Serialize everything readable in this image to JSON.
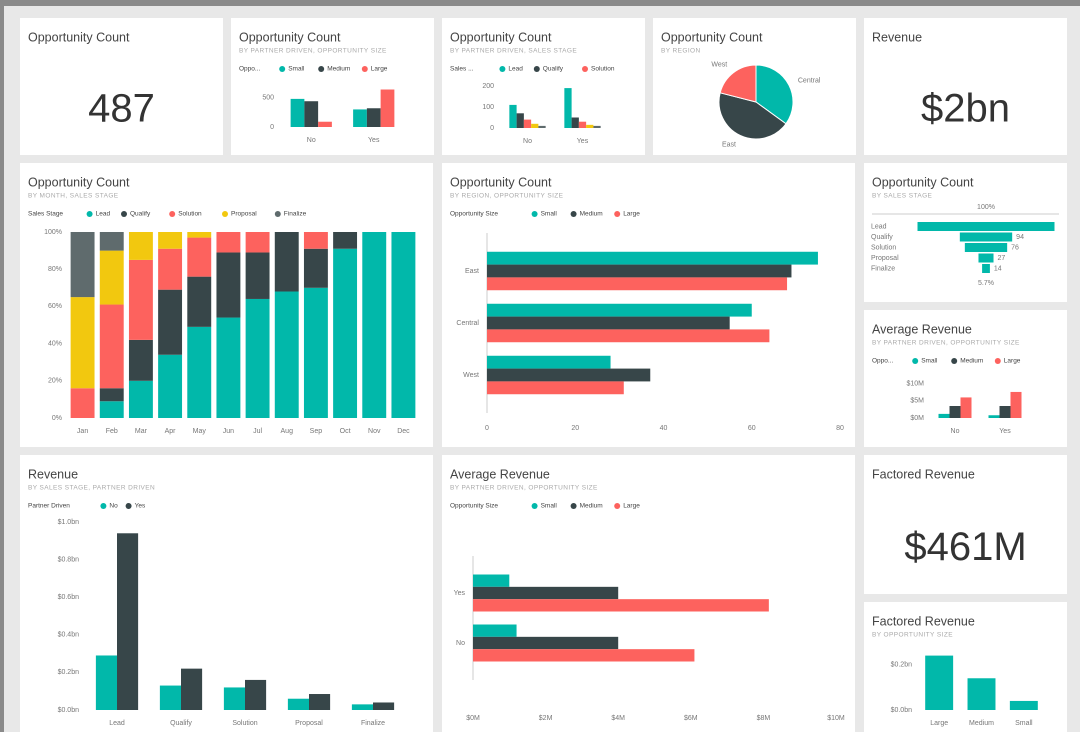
{
  "chart_data": [
    {
      "type": "card",
      "title": "Opportunity Count",
      "value": 487
    },
    {
      "type": "bar",
      "title": "Opportunity Count",
      "subtitle": "BY PARTNER DRIVEN, OPPORTUNITY SIZE",
      "legend_title": "Oppo...",
      "categories": [
        "No",
        "Yes"
      ],
      "series": [
        {
          "name": "Small",
          "color": "#01b8aa",
          "values": [
            480,
            300
          ]
        },
        {
          "name": "Medium",
          "color": "#374649",
          "values": [
            440,
            320
          ]
        },
        {
          "name": "Large",
          "color": "#fd625e",
          "values": [
            90,
            640
          ]
        }
      ],
      "ylim": [
        0,
        700
      ],
      "yticks": [
        0,
        500
      ]
    },
    {
      "type": "bar",
      "title": "Opportunity Count",
      "subtitle": "BY PARTNER DRIVEN, SALES STAGE",
      "legend_title": "Sales ...",
      "categories": [
        "No",
        "Yes"
      ],
      "series": [
        {
          "name": "Lead",
          "color": "#01b8aa",
          "values": [
            110,
            190
          ]
        },
        {
          "name": "Qualify",
          "color": "#374649",
          "values": [
            70,
            50
          ]
        },
        {
          "name": "Solution",
          "color": "#fd625e",
          "values": [
            40,
            30
          ]
        },
        {
          "name": "Proposal",
          "color": "#f2c80f",
          "values": [
            20,
            15
          ]
        },
        {
          "name": "Finalize",
          "color": "#5f6b6d",
          "values": [
            10,
            10
          ]
        }
      ],
      "ylim": [
        0,
        200
      ],
      "yticks": [
        0,
        100,
        200
      ]
    },
    {
      "type": "pie",
      "title": "Opportunity Count",
      "subtitle": "BY REGION",
      "categories": [
        "Central",
        "East",
        "West"
      ],
      "values": [
        35,
        44,
        21
      ],
      "colors": [
        "#01b8aa",
        "#374649",
        "#fd625e"
      ]
    },
    {
      "type": "card",
      "title": "Revenue",
      "value": 2000000000,
      "value_label": "$2bn"
    },
    {
      "type": "bar",
      "stacked": true,
      "title": "Opportunity Count",
      "subtitle": "BY MONTH, SALES STAGE",
      "legend_title": "Sales Stage",
      "categories": [
        "Jan",
        "Feb",
        "Mar",
        "Apr",
        "May",
        "Jun",
        "Jul",
        "Aug",
        "Sep",
        "Oct",
        "Nov",
        "Dec"
      ],
      "series": [
        {
          "name": "Lead",
          "color": "#01b8aa",
          "values": [
            0,
            9,
            20,
            34,
            49,
            54,
            64,
            68,
            70,
            91,
            100,
            100
          ]
        },
        {
          "name": "Qualify",
          "color": "#374649",
          "values": [
            0,
            7,
            22,
            35,
            27,
            35,
            25,
            32,
            21,
            9,
            0,
            0
          ]
        },
        {
          "name": "Solution",
          "color": "#fd625e",
          "values": [
            16,
            45,
            43,
            22,
            21,
            11,
            11,
            0,
            9,
            0,
            0,
            0
          ]
        },
        {
          "name": "Proposal",
          "color": "#f2c80f",
          "values": [
            49,
            29,
            15,
            9,
            3,
            0,
            0,
            0,
            0,
            0,
            0,
            0
          ]
        },
        {
          "name": "Finalize",
          "color": "#5f6b6d",
          "values": [
            35,
            10,
            0,
            0,
            0,
            0,
            0,
            0,
            0,
            0,
            0,
            0
          ]
        }
      ],
      "ylim": [
        0,
        100
      ],
      "yticks": [
        {
          "value": 0,
          "label": "0%"
        },
        {
          "value": 20,
          "label": "20%"
        },
        {
          "value": 40,
          "label": "40%"
        },
        {
          "value": 60,
          "label": "60%"
        },
        {
          "value": 80,
          "label": "80%"
        },
        {
          "value": 100,
          "label": "100%"
        }
      ]
    },
    {
      "type": "hbar",
      "title": "Opportunity Count",
      "subtitle": "BY REGION, OPPORTUNITY SIZE",
      "legend_title": "Opportunity Size",
      "categories": [
        "East",
        "Central",
        "West"
      ],
      "series": [
        {
          "name": "Small",
          "color": "#01b8aa",
          "values": [
            75,
            60,
            28
          ]
        },
        {
          "name": "Medium",
          "color": "#374649",
          "values": [
            69,
            55,
            37
          ]
        },
        {
          "name": "Large",
          "color": "#fd625e",
          "values": [
            68,
            64,
            31
          ]
        }
      ],
      "xlim": [
        0,
        80
      ],
      "xticks": [
        0,
        20,
        40,
        60,
        80
      ]
    },
    {
      "type": "funnel",
      "title": "Opportunity Count",
      "subtitle": "BY SALES STAGE",
      "categories": [
        "Lead",
        "Qualify",
        "Solution",
        "Proposal",
        "Finalize"
      ],
      "values": [
        246,
        94,
        76,
        27,
        14
      ],
      "color": "#01b8aa",
      "top_label": "100%",
      "bottom_label": "5.7%"
    },
    {
      "type": "bar",
      "title": "Average Revenue",
      "subtitle": "BY PARTNER DRIVEN, OPPORTUNITY SIZE",
      "legend_title": "Oppo...",
      "categories": [
        "No",
        "Yes"
      ],
      "series": [
        {
          "name": "Small",
          "color": "#01b8aa",
          "values": [
            1.2,
            0.8
          ]
        },
        {
          "name": "Medium",
          "color": "#374649",
          "values": [
            3.5,
            3.5
          ]
        },
        {
          "name": "Large",
          "color": "#fd625e",
          "values": [
            6,
            7.6
          ]
        }
      ],
      "ylim": [
        0,
        10.5
      ],
      "yticks": [
        {
          "value": 0,
          "label": "$0M"
        },
        {
          "value": 5,
          "label": "$5M"
        },
        {
          "value": 10,
          "label": "$10M"
        }
      ]
    },
    {
      "type": "bar",
      "title": "Revenue",
      "subtitle": "BY SALES STAGE, PARTNER DRIVEN",
      "legend_title": "Partner Driven",
      "categories": [
        "Lead",
        "Qualify",
        "Solution",
        "Proposal",
        "Finalize"
      ],
      "series": [
        {
          "name": "No",
          "color": "#01b8aa",
          "values": [
            0.29,
            0.13,
            0.12,
            0.06,
            0.03
          ]
        },
        {
          "name": "Yes",
          "color": "#374649",
          "values": [
            0.94,
            0.22,
            0.16,
            0.085,
            0.04
          ]
        }
      ],
      "ylim": [
        0,
        1.0
      ],
      "yticks": [
        {
          "value": 0,
          "label": "$0.0bn"
        },
        {
          "value": 0.2,
          "label": "$0.2bn"
        },
        {
          "value": 0.4,
          "label": "$0.4bn"
        },
        {
          "value": 0.6,
          "label": "$0.6bn"
        },
        {
          "value": 0.8,
          "label": "$0.8bn"
        },
        {
          "value": 1.0,
          "label": "$1.0bn"
        }
      ]
    },
    {
      "type": "hbar",
      "title": "Average Revenue",
      "subtitle": "BY PARTNER DRIVEN, OPPORTUNITY SIZE",
      "legend_title": "Opportunity Size",
      "categories": [
        "Yes",
        "No"
      ],
      "series": [
        {
          "name": "Small",
          "color": "#01b8aa",
          "values": [
            1,
            1.2
          ]
        },
        {
          "name": "Medium",
          "color": "#374649",
          "values": [
            4,
            4
          ]
        },
        {
          "name": "Large",
          "color": "#fd625e",
          "values": [
            8.15,
            6.1
          ]
        }
      ],
      "xlim": [
        0,
        10
      ],
      "xticks": [
        {
          "value": 0,
          "label": "$0M"
        },
        {
          "value": 2,
          "label": "$2M"
        },
        {
          "value": 4,
          "label": "$4M"
        },
        {
          "value": 6,
          "label": "$6M"
        },
        {
          "value": 8,
          "label": "$8M"
        },
        {
          "value": 10,
          "label": "$10M"
        }
      ]
    },
    {
      "type": "card",
      "title": "Factored Revenue",
      "value": 461000000,
      "value_label": "$461M"
    },
    {
      "type": "bar",
      "title": "Factored Revenue",
      "subtitle": "BY OPPORTUNITY SIZE",
      "categories": [
        "Large",
        "Medium",
        "Small"
      ],
      "values": [
        0.24,
        0.14,
        0.04
      ],
      "color": "#01b8aa",
      "ylim": [
        0,
        0.3
      ],
      "yticks": [
        {
          "value": 0,
          "label": "$0.0bn"
        },
        {
          "value": 0.2,
          "label": "$0.2bn"
        }
      ]
    }
  ]
}
